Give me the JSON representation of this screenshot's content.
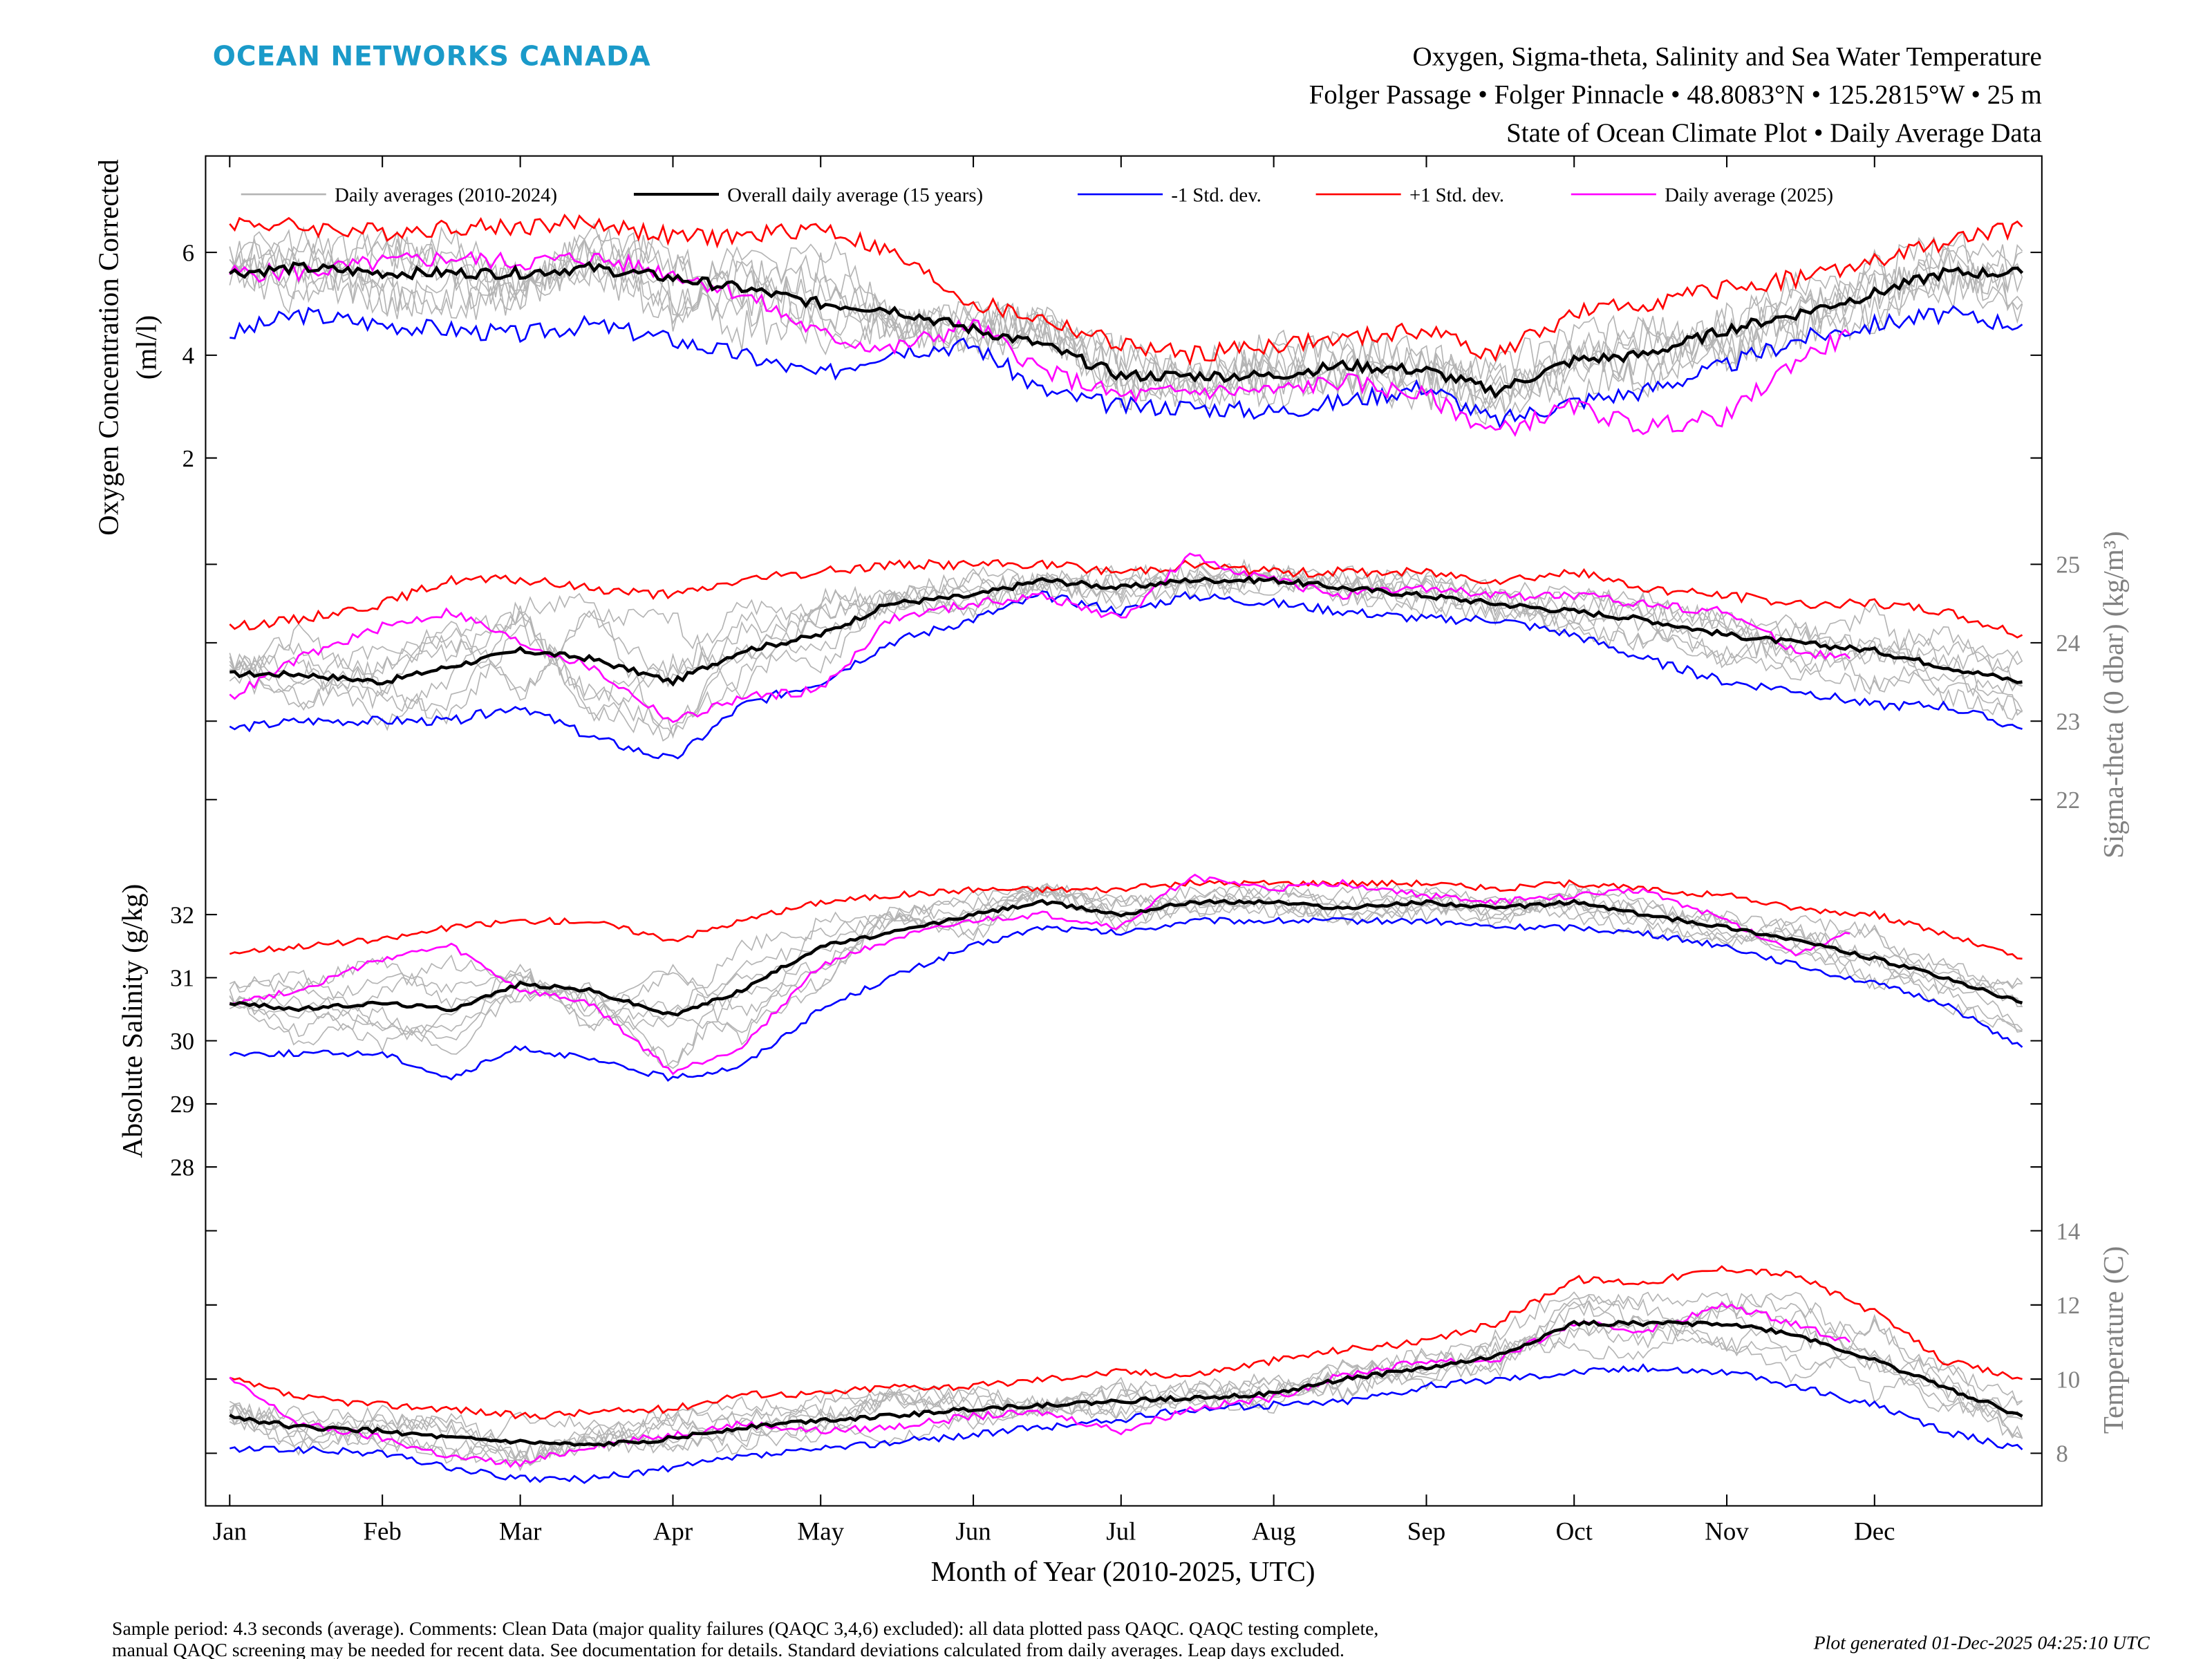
{
  "header": {
    "logo_text": "OCEAN NETWORKS CANADA",
    "logo_color": "#1a9ac9",
    "title_line1": "Oxygen, Sigma-theta, Salinity and Sea Water Temperature",
    "title_line2": "Folger Passage • Folger Pinnacle • 48.8083°N • 125.2815°W • 25 m",
    "title_line3": "State of Ocean Climate Plot • Daily Average Data"
  },
  "footer": {
    "note_line1": "Sample period: 4.3 seconds (average). Comments: Clean Data (major quality failures (QAQC 3,4,6) excluded): all data plotted pass QAQC. QAQC testing complete,",
    "note_line2": "manual QAQC screening may be needed for recent data. See documentation for details. Standard deviations calculated from daily averages. Leap days excluded.",
    "generated": "Plot generated 01-Dec-2025 04:25:10 UTC"
  },
  "chart_data": {
    "type": "line",
    "xlabel": "Month of Year (2010-2025, UTC)",
    "x_tick_labels": [
      "Jan",
      "Feb",
      "Mar",
      "Apr",
      "May",
      "Jun",
      "Jul",
      "Aug",
      "Sep",
      "Oct",
      "Nov",
      "Dec"
    ],
    "legend": {
      "placement": "top",
      "entries": [
        {
          "label": "Daily averages (2010-2024)",
          "color": "#b4b4b4"
        },
        {
          "label": "Overall daily average (15 years)",
          "color": "#000000"
        },
        {
          "label": "-1 Std. dev.",
          "color": "#0000ff"
        },
        {
          "label": "+1 Std. dev.",
          "color": "#ff0000"
        },
        {
          "label": "Daily average (2025)",
          "color": "#ff00ff"
        }
      ]
    },
    "x_day_of_year": [
      1,
      15,
      32,
      46,
      60,
      74,
      91,
      105,
      121,
      135,
      152,
      166,
      182,
      196,
      213,
      227,
      244,
      258,
      274,
      288,
      305,
      319,
      335,
      349,
      365
    ],
    "x_day_of_year_2025": [
      1,
      15,
      32,
      46,
      60,
      74,
      91,
      105,
      121,
      135,
      152,
      166,
      182,
      196,
      213,
      227,
      244,
      258,
      274,
      288,
      305,
      319,
      330
    ],
    "panels": [
      {
        "id": "oxygen",
        "ylabel_line1": "Oxygen Concentration Corrected",
        "ylabel_line2": "(ml/l)",
        "axis_side": "left",
        "ticks": [
          2,
          4,
          6
        ],
        "tick_labels": [
          "2",
          "4",
          "6"
        ],
        "series": {
          "mean": [
            5.6,
            5.7,
            5.6,
            5.6,
            5.6,
            5.7,
            5.5,
            5.3,
            5.0,
            4.9,
            4.5,
            4.2,
            3.6,
            3.6,
            3.6,
            3.8,
            3.7,
            3.3,
            3.9,
            4.0,
            4.5,
            4.8,
            5.2,
            5.6,
            5.6
          ],
          "plus_std": [
            6.6,
            6.5,
            6.4,
            6.5,
            6.5,
            6.6,
            6.3,
            6.3,
            6.5,
            6.0,
            5.0,
            4.7,
            4.2,
            4.0,
            4.2,
            4.3,
            4.5,
            4.0,
            4.8,
            5.0,
            5.3,
            5.5,
            5.8,
            6.2,
            6.5
          ],
          "minus_std": [
            4.4,
            4.8,
            4.6,
            4.5,
            4.4,
            4.6,
            4.3,
            4.0,
            3.6,
            4.1,
            4.2,
            3.3,
            3.0,
            3.0,
            2.9,
            3.1,
            3.4,
            2.7,
            3.1,
            3.3,
            3.8,
            4.3,
            4.6,
            4.8,
            4.6
          ],
          "y2025": [
            5.6,
            5.6,
            5.8,
            5.9,
            5.8,
            5.9,
            5.6,
            5.2,
            4.4,
            4.1,
            4.6,
            3.7,
            3.2,
            3.3,
            3.3,
            3.5,
            3.2,
            2.5,
            3.0,
            2.6,
            2.8,
            3.9,
            4.4
          ]
        }
      },
      {
        "id": "sigma-theta",
        "ylabel_line1": "Sigma-theta (0 dbar) (kg/m³)",
        "axis_side": "right",
        "ticks": [
          22,
          23,
          24,
          25
        ],
        "tick_labels": [
          "22",
          "23",
          "24",
          "25"
        ],
        "series": {
          "mean": [
            23.6,
            23.6,
            23.5,
            23.7,
            23.9,
            23.8,
            23.5,
            23.9,
            24.1,
            24.5,
            24.6,
            24.8,
            24.7,
            24.8,
            24.8,
            24.7,
            24.6,
            24.5,
            24.4,
            24.3,
            24.1,
            24.0,
            23.9,
            23.7,
            23.5
          ],
          "plus_std": [
            24.2,
            24.3,
            24.5,
            24.8,
            24.8,
            24.7,
            24.6,
            24.8,
            24.9,
            25.0,
            25.0,
            25.0,
            24.9,
            25.0,
            24.9,
            24.9,
            24.9,
            24.8,
            24.9,
            24.7,
            24.6,
            24.5,
            24.5,
            24.4,
            24.1
          ],
          "minus_std": [
            22.9,
            23.0,
            23.0,
            23.0,
            23.2,
            22.8,
            22.5,
            23.2,
            23.5,
            24.0,
            24.3,
            24.6,
            24.4,
            24.6,
            24.5,
            24.4,
            24.3,
            24.3,
            24.1,
            23.8,
            23.5,
            23.4,
            23.2,
            23.2,
            22.9
          ],
          "y2025": [
            23.3,
            23.8,
            24.2,
            24.4,
            24.0,
            23.7,
            23.0,
            23.3,
            23.4,
            24.3,
            24.5,
            24.6,
            24.3,
            25.1,
            24.8,
            24.6,
            24.7,
            24.6,
            24.6,
            24.5,
            24.4,
            23.9,
            23.8
          ]
        }
      },
      {
        "id": "salinity",
        "ylabel_line1": "Absolute Salinity (g/kg)",
        "axis_side": "left",
        "ticks": [
          28,
          29,
          30,
          31,
          32
        ],
        "tick_labels": [
          "28",
          "29",
          "30",
          "31",
          "32"
        ],
        "series": {
          "mean": [
            30.6,
            30.5,
            30.6,
            30.5,
            30.9,
            30.8,
            30.4,
            30.8,
            31.5,
            31.7,
            32.0,
            32.2,
            32.0,
            32.2,
            32.2,
            32.1,
            32.2,
            32.1,
            32.2,
            32.0,
            31.8,
            31.6,
            31.3,
            31.0,
            30.6
          ],
          "plus_std": [
            31.4,
            31.5,
            31.6,
            31.8,
            31.9,
            31.9,
            31.6,
            31.9,
            32.2,
            32.3,
            32.4,
            32.4,
            32.4,
            32.5,
            32.5,
            32.5,
            32.5,
            32.4,
            32.5,
            32.4,
            32.3,
            32.1,
            32.0,
            31.7,
            31.3
          ],
          "minus_std": [
            29.8,
            29.8,
            29.8,
            29.4,
            29.9,
            29.7,
            29.4,
            29.6,
            30.5,
            31.0,
            31.5,
            31.8,
            31.7,
            31.9,
            31.9,
            31.9,
            31.9,
            31.8,
            31.8,
            31.7,
            31.5,
            31.2,
            30.9,
            30.6,
            29.9
          ],
          "y2025": [
            30.6,
            30.8,
            31.3,
            31.5,
            30.8,
            30.6,
            29.5,
            29.9,
            31.2,
            31.6,
            31.9,
            32.0,
            31.8,
            32.6,
            32.4,
            32.5,
            32.3,
            32.2,
            32.3,
            32.4,
            31.9,
            31.4,
            31.7
          ]
        }
      },
      {
        "id": "temperature",
        "ylabel_line1": "Temperature (C)",
        "axis_side": "right",
        "ticks": [
          8,
          10,
          12,
          14
        ],
        "tick_labels": [
          "8",
          "10",
          "12",
          "14"
        ],
        "series": {
          "mean": [
            9.0,
            8.7,
            8.6,
            8.4,
            8.3,
            8.2,
            8.4,
            8.7,
            8.9,
            9.0,
            9.2,
            9.3,
            9.4,
            9.5,
            9.6,
            10.0,
            10.3,
            10.6,
            11.5,
            11.5,
            11.5,
            11.2,
            10.5,
            9.8,
            9.0
          ],
          "plus_std": [
            10.0,
            9.5,
            9.3,
            9.2,
            9.0,
            9.1,
            9.2,
            9.6,
            9.6,
            9.8,
            9.8,
            10.0,
            10.2,
            10.1,
            10.5,
            10.8,
            11.0,
            11.5,
            12.7,
            12.6,
            13.0,
            12.8,
            11.8,
            10.5,
            10.0
          ],
          "minus_std": [
            8.1,
            8.1,
            8.0,
            7.6,
            7.3,
            7.3,
            7.6,
            7.9,
            8.1,
            8.3,
            8.5,
            8.7,
            8.9,
            9.2,
            9.3,
            9.4,
            9.8,
            10.0,
            10.2,
            10.3,
            10.2,
            9.8,
            9.3,
            8.6,
            8.1
          ],
          "y2025": [
            10.0,
            8.8,
            8.4,
            7.9,
            7.7,
            8.2,
            8.5,
            8.8,
            8.6,
            8.7,
            9.0,
            9.1,
            8.6,
            9.2,
            9.5,
            10.1,
            10.5,
            10.5,
            11.5,
            11.3,
            12.0,
            11.5,
            11.0
          ]
        }
      }
    ]
  }
}
